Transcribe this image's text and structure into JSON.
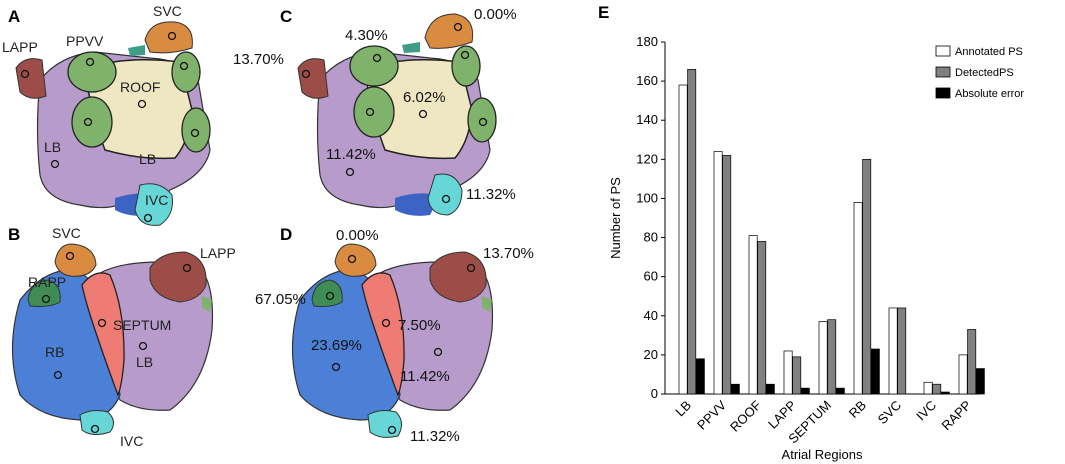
{
  "panels": {
    "A": {
      "letter": "A",
      "labels": {
        "lapp": "LAPP",
        "ppvv": "PPVV",
        "svc": "SVC",
        "roof": "ROOF",
        "lb_left": "LB",
        "lb_bottom": "LB",
        "ivc": "IVC"
      }
    },
    "B": {
      "letter": "B",
      "labels": {
        "svc": "SVC",
        "rapp": "RAPP",
        "rb": "RB",
        "septum": "SEPTUM",
        "lb": "LB",
        "lapp": "LAPP",
        "ivc": "IVC"
      }
    },
    "C": {
      "letter": "C",
      "labels": {
        "lapp": "13.70%",
        "ppvv": "4.30%",
        "svc": "0.00%",
        "roof": "6.02%",
        "lb": "11.42%",
        "ivc": "11.32%"
      }
    },
    "D": {
      "letter": "D",
      "labels": {
        "svc": "0.00%",
        "lapp": "13.70%",
        "rapp": "67.05%",
        "septum": "7.50%",
        "rb": "23.69%",
        "lb": "11.42%",
        "ivc": "11.32%"
      }
    },
    "E": {
      "letter": "E"
    }
  },
  "colors": {
    "lb": "#b79ccb",
    "roof": "#efe7c2",
    "ppvv": "#7fb26a",
    "svc": "#d98b3f",
    "lapp": "#9c4d47",
    "ivc": "#66d6d6",
    "rb": "#4c7fd6",
    "septum": "#ee7b74",
    "rapp": "#3f8d55",
    "annotated": "#ffffff",
    "detected": "#808080",
    "error": "#000000"
  },
  "chart_data": {
    "type": "bar",
    "title": "",
    "xlabel": "Atrial Regions",
    "ylabel": "Number of PS",
    "ylim": [
      0,
      180
    ],
    "yticks": [
      0,
      20,
      40,
      60,
      80,
      100,
      120,
      140,
      160,
      180
    ],
    "categories": [
      "LB",
      "PPVV",
      "ROOF",
      "LAPP",
      "SEPTUM",
      "RB",
      "SVC",
      "IVC",
      "RAPP"
    ],
    "series": [
      {
        "name": "Annotated PS",
        "values": [
          158,
          124,
          81,
          22,
          37,
          98,
          44,
          6,
          20
        ]
      },
      {
        "name": "DetectedPS",
        "values": [
          166,
          122,
          78,
          19,
          38,
          120,
          44,
          5,
          33
        ]
      },
      {
        "name": "Absolute error",
        "values": [
          18,
          5,
          5,
          3,
          3,
          23,
          0,
          1,
          13
        ]
      }
    ],
    "legend": "top-right"
  }
}
